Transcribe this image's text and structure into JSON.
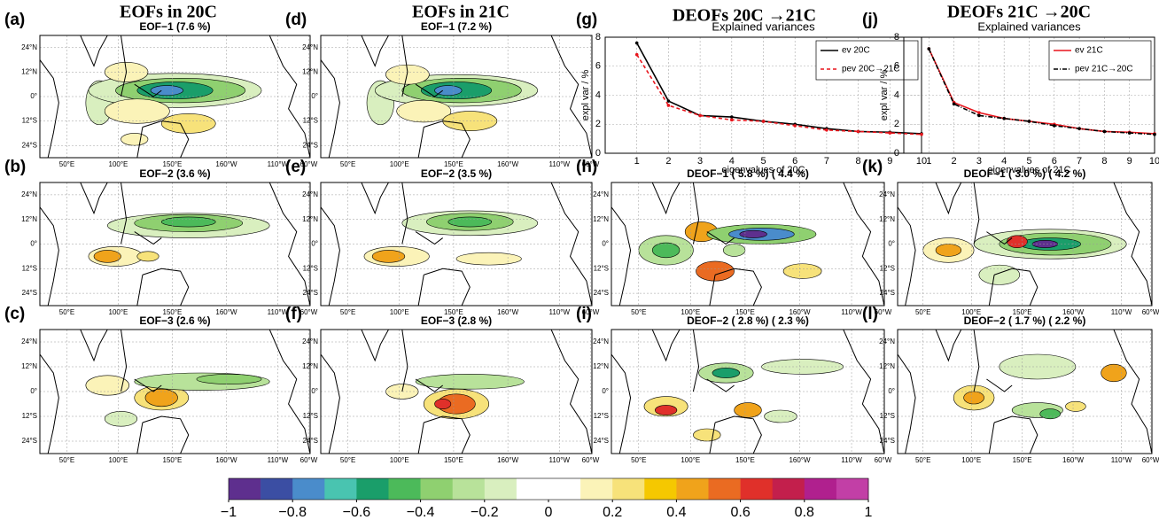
{
  "column_titles": [
    "EOFs in 20C",
    "EOFs in 21C",
    "DEOFs 20C →21C",
    "DEOFs 21C →20C"
  ],
  "panels": [
    {
      "label": "(a)",
      "title": "EOF−1 (7.6 %)"
    },
    {
      "label": "(b)",
      "title": "EOF−2 (3.6 %)"
    },
    {
      "label": "(c)",
      "title": "EOF−3 (2.6 %)"
    },
    {
      "label": "(d)",
      "title": "EOF−1 (7.2 %)"
    },
    {
      "label": "(e)",
      "title": "EOF−2 (3.5 %)"
    },
    {
      "label": "(f)",
      "title": "EOF−3 (2.8 %)"
    },
    {
      "label": "(g)"
    },
    {
      "label": "(h)",
      "title": "DEOF−1 ( 5.8 %) ( 4.4 %)"
    },
    {
      "label": "(i)",
      "title": "DEOF−2 ( 2.8 %) ( 2.3 %)"
    },
    {
      "label": "(j)"
    },
    {
      "label": "(k)",
      "title": "DEOF−1 ( 3.0 %) ( 4.2 %)"
    },
    {
      "label": "(l)",
      "title": "DEOF−2 ( 1.7 %) ( 2.2 %)"
    }
  ],
  "map_axes": {
    "lon_ticks": [
      "50°E",
      "100°E",
      "150°E",
      "160°W",
      "110°W",
      "60°W"
    ],
    "lat_ticks": [
      "24°N",
      "12°N",
      "0°",
      "12°S",
      "24°S"
    ]
  },
  "chart_data": [
    {
      "type": "line",
      "title": "Explained variances",
      "x_label": "eigenvalues of 20C",
      "y_label": "expl var / %",
      "x": [
        1,
        2,
        3,
        4,
        5,
        6,
        7,
        8,
        9,
        10
      ],
      "xlim": [
        0,
        10
      ],
      "xticks": [
        1,
        2,
        3,
        4,
        5,
        6,
        7,
        8,
        9,
        10
      ],
      "ylim": [
        0,
        8
      ],
      "yticks": [
        0,
        2,
        4,
        6,
        8
      ],
      "grid": true,
      "legend": "upper right",
      "series": [
        {
          "name": "ev 20C",
          "color": "#000000",
          "line_style": "solid",
          "values": [
            7.6,
            3.6,
            2.6,
            2.5,
            2.2,
            2.0,
            1.7,
            1.5,
            1.45,
            1.35
          ]
        },
        {
          "name": "pev 20C→21C",
          "color": "#e8141b",
          "line_style": "dashed",
          "values": [
            6.8,
            3.3,
            2.6,
            2.3,
            2.2,
            1.9,
            1.6,
            1.5,
            1.4,
            1.3
          ]
        }
      ]
    },
    {
      "type": "line",
      "title": "Explained variances",
      "x_label": "eigenvalues of 21C",
      "y_label": "expl var / %",
      "x": [
        1,
        2,
        3,
        4,
        5,
        6,
        7,
        8,
        9,
        10
      ],
      "xlim": [
        0,
        10
      ],
      "xticks": [
        1,
        2,
        3,
        4,
        5,
        6,
        7,
        8,
        9,
        10
      ],
      "ylim": [
        0,
        8
      ],
      "yticks": [
        0,
        2,
        4,
        6,
        8
      ],
      "grid": true,
      "legend": "upper right",
      "series": [
        {
          "name": "ev 21C",
          "color": "#e8141b",
          "line_style": "solid",
          "values": [
            7.2,
            3.5,
            2.8,
            2.4,
            2.2,
            2.0,
            1.7,
            1.5,
            1.45,
            1.35
          ]
        },
        {
          "name": "pev 21C→20C",
          "color": "#000000",
          "line_style": "dashdot",
          "values": [
            7.2,
            3.4,
            2.6,
            2.4,
            2.2,
            1.9,
            1.7,
            1.5,
            1.4,
            1.3
          ]
        }
      ]
    },
    {
      "type": "colorbar",
      "xlim": [
        -1,
        1
      ],
      "xticks": [
        {
          "value": -1,
          "label": "−1"
        },
        {
          "value": -0.8,
          "label": "−0.8"
        },
        {
          "value": -0.6,
          "label": "−0.6"
        },
        {
          "value": -0.4,
          "label": "−0.4"
        },
        {
          "value": -0.2,
          "label": "−0.2"
        },
        0,
        0.2,
        0.4,
        0.6,
        0.8,
        1
      ],
      "colors": [
        "#5e2f8e",
        "#3b4ea3",
        "#4a8ccb",
        "#49c4b0",
        "#1a9e6a",
        "#4cba5a",
        "#8fd070",
        "#b8e29a",
        "#d9efbf",
        "#ffffff",
        "#ffffff",
        "#fbf3b8",
        "#f7e27a",
        "#f5c800",
        "#f0a31b",
        "#ea6b22",
        "#e0302a",
        "#c31f4c",
        "#b0208e",
        "#c23fa6"
      ]
    }
  ]
}
